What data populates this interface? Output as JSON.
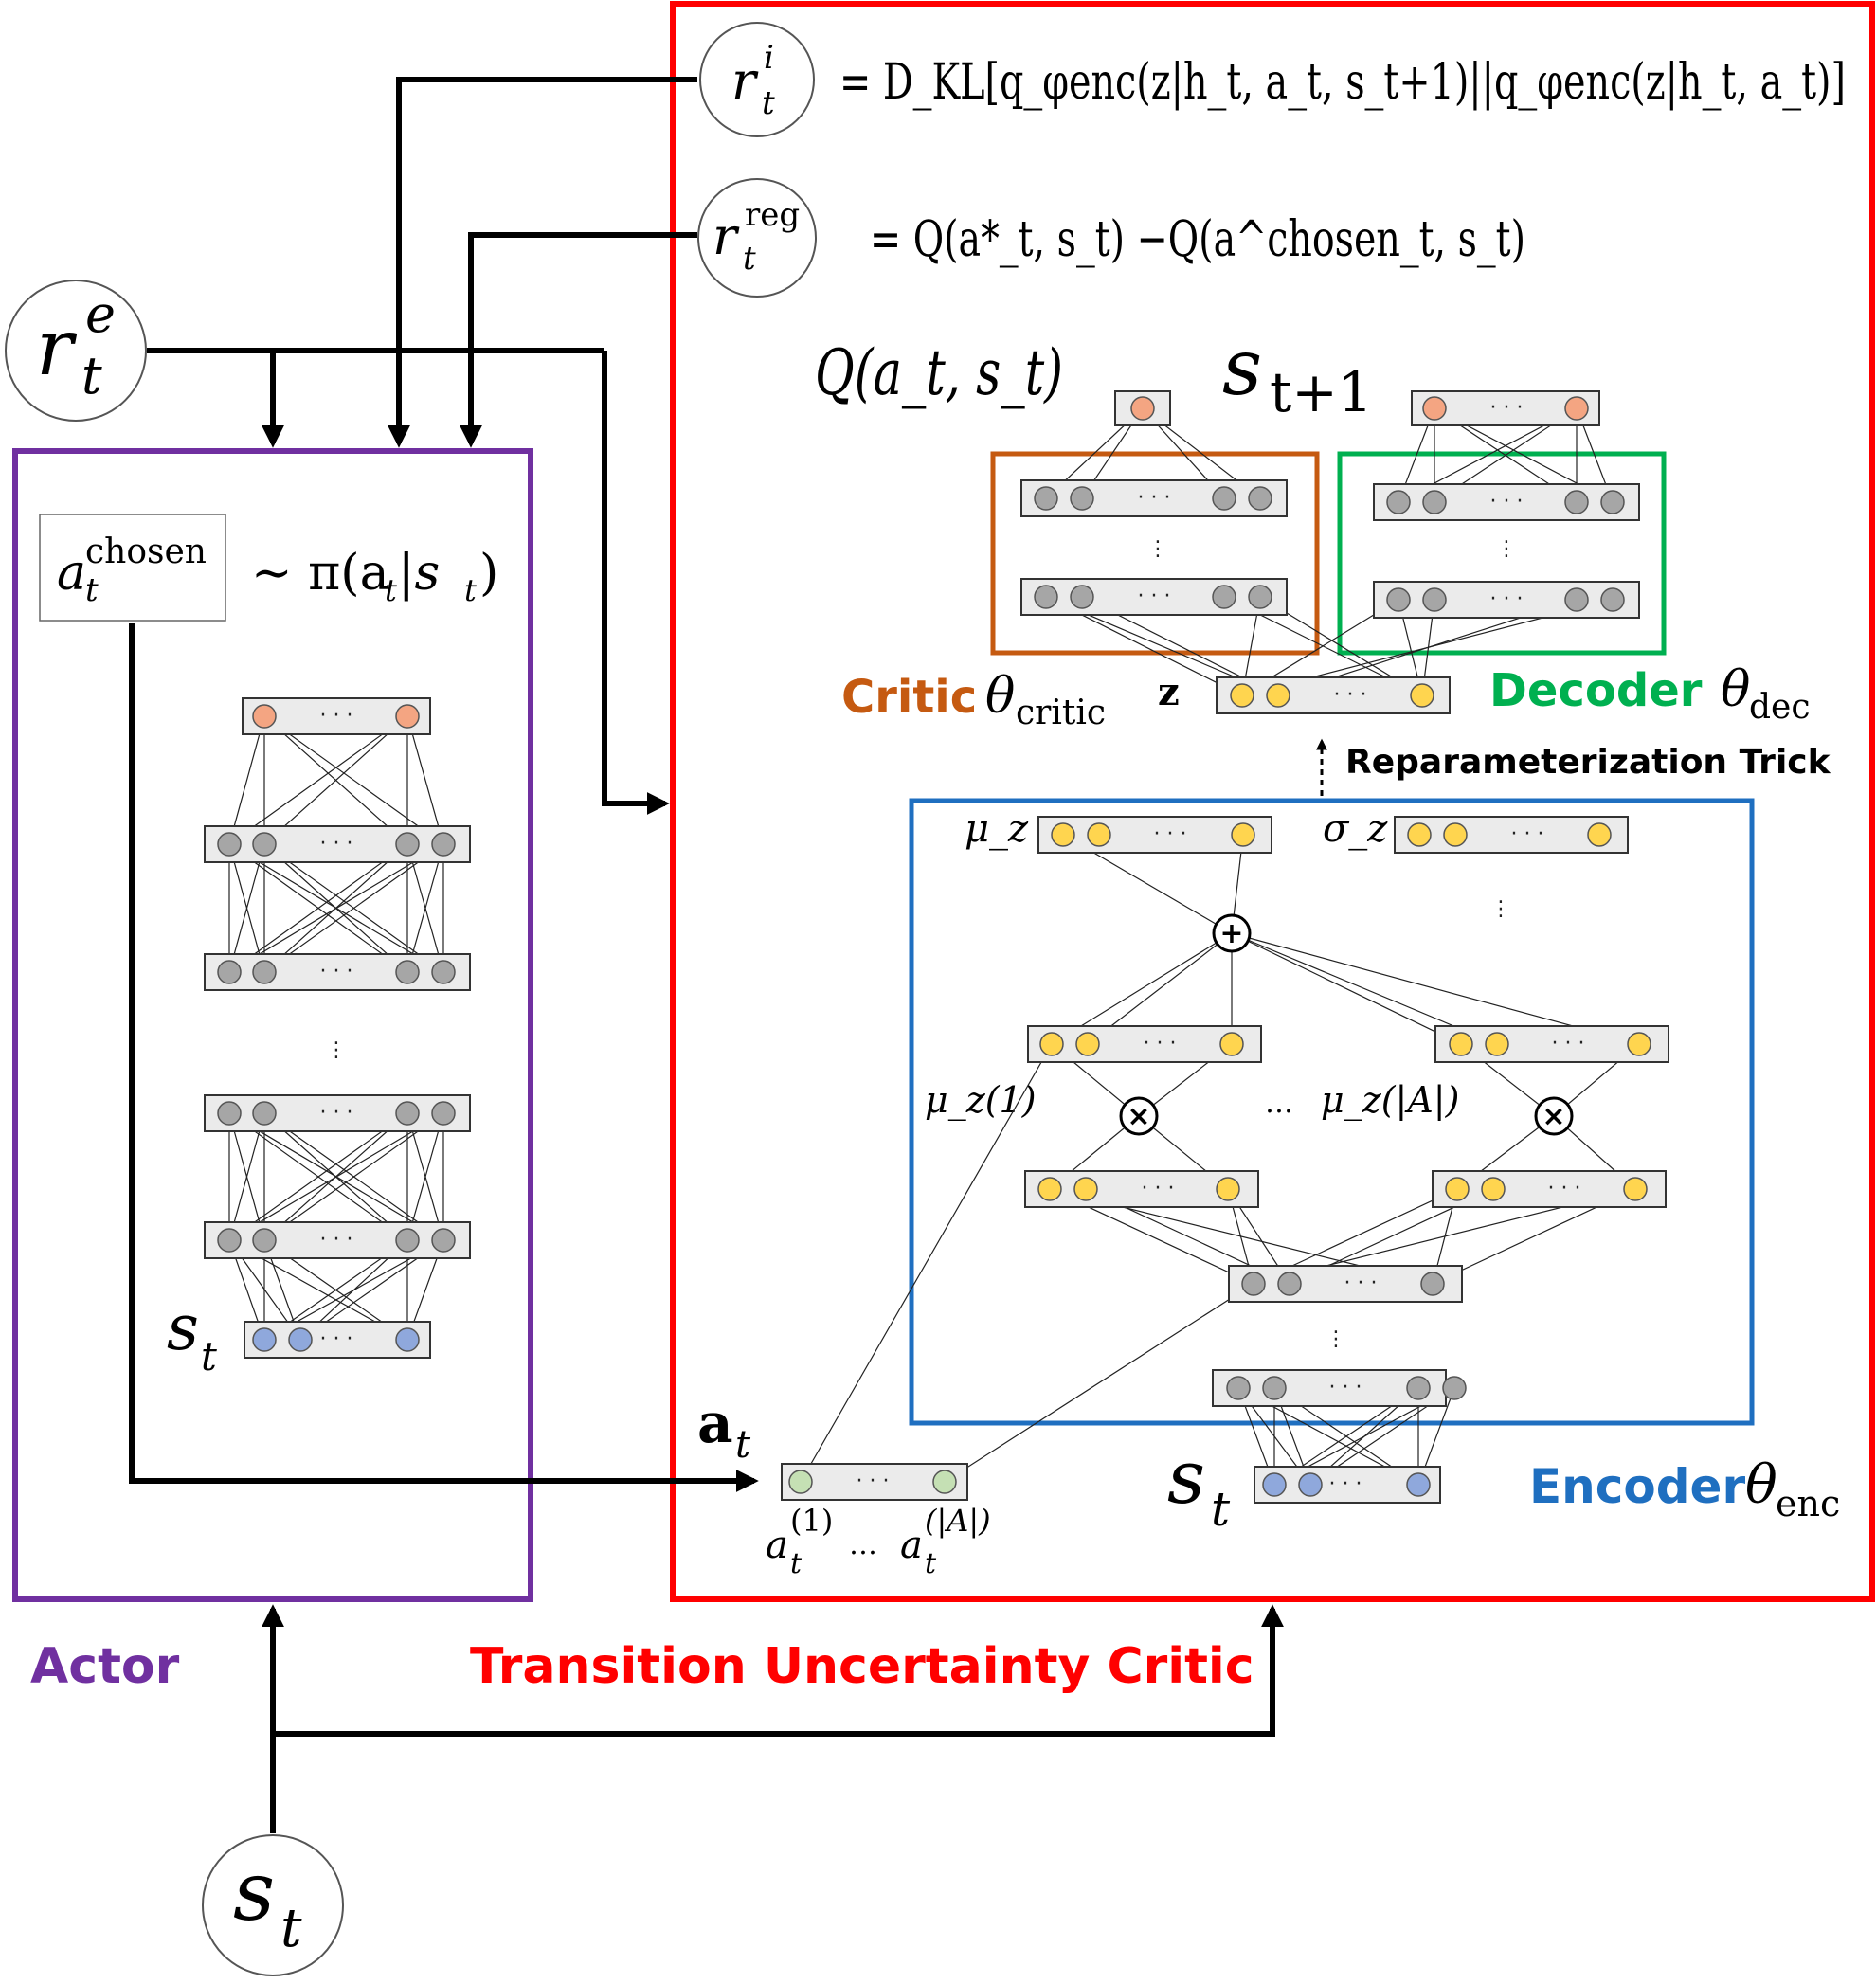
{
  "colors": {
    "actor": "#7030a0",
    "tuc": "#ff0000",
    "encoder": "#1f6fc0",
    "critic": "#c55a11",
    "decoder": "#00b050",
    "node_gray": "#a6a6a6",
    "node_orange": "#f4a582",
    "node_yellow": "#ffd54f",
    "node_blue": "#8fa8dc",
    "node_green": "#c5e0b4"
  },
  "top_inputs": {
    "reward_extrinsic": {
      "base": "r",
      "sup": "e",
      "sub": "t"
    },
    "state_input": {
      "base": "s",
      "sub": "t"
    }
  },
  "actor": {
    "label": "Actor",
    "chosen_action": {
      "base": "a",
      "sub": "t",
      "sup": "chosen"
    },
    "policy": {
      "text": "∼ π(a",
      "sub": "t",
      "mid": "|s",
      "sub2": "t",
      "end": ")"
    },
    "network_input_label": {
      "base": "s",
      "sub": "t"
    },
    "icon": "neural-network-icon"
  },
  "tuc": {
    "label": "Transition Uncertainty Critic",
    "reward_intrinsic": {
      "base": "r",
      "sup": "i",
      "sub": "t"
    },
    "reward_regret": {
      "base": "r",
      "sup": "reg",
      "sub": "t"
    },
    "eq_intrinsic": "= D_KL[q_φenc(z|h_t, a_t, s_t+1)||q_φenc(z|h_t, a_t)]",
    "eq_regret": "= Q(a*_t, s_t) −Q(a^chosen_t, s_t)",
    "q_label": "Q(a_t, s_t)",
    "next_state_label": {
      "base": "s",
      "sub": "t+1"
    },
    "critic": {
      "label": "Critic",
      "theta": "θ",
      "theta_sub": "critic"
    },
    "decoder": {
      "label": "Decoder",
      "theta": "θ",
      "theta_sub": "dec"
    },
    "z_label": "z",
    "reparam_label": "Reparameterization Trick",
    "encoder": {
      "label": "Encoder",
      "theta": "θ",
      "theta_sub": "enc",
      "mu_z": "μ_z",
      "sigma_z": "σ_z",
      "mu_z1": "μ_z(1)",
      "mu_zA": "μ_z(|A|)",
      "ellipsis": "…",
      "state_label": {
        "base": "s",
        "sub": "t"
      }
    },
    "action_vector": {
      "label": {
        "base": "a",
        "sub": "t"
      },
      "first": {
        "base": "a",
        "sub": "t",
        "sup": "(1)"
      },
      "last": {
        "base": "a",
        "sub": "t",
        "sup": "(|A|)"
      },
      "ellipsis": "…"
    }
  },
  "symbols": {
    "plus": "+",
    "times": "×",
    "dots": "· · ·",
    "vdots": "⋮"
  }
}
